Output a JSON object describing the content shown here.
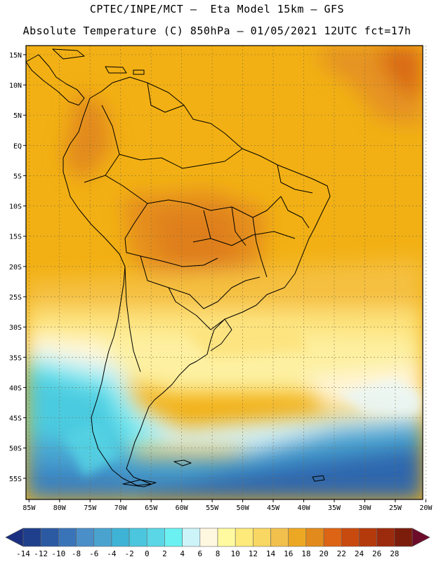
{
  "title_line1": "CPTEC/INPE/MCT –  Eta Model 15km – GFS",
  "title_line2": "Absolute Temperature (C) 850hPa – 01/05/2021 12UTC fct=17h",
  "lat_labels": [
    "15N",
    "10N",
    "5N",
    "EQ",
    "5S",
    "10S",
    "15S",
    "20S",
    "25S",
    "30S",
    "35S",
    "40S",
    "45S",
    "50S",
    "55S"
  ],
  "lat_values": [
    15,
    10,
    5,
    0,
    -5,
    -10,
    -15,
    -20,
    -25,
    -30,
    -35,
    -40,
    -45,
    -50,
    -55
  ],
  "lon_labels": [
    "85W",
    "80W",
    "75W",
    "70W",
    "65W",
    "60W",
    "55W",
    "50W",
    "45W",
    "40W",
    "35W",
    "30W",
    "25W",
    "20W"
  ],
  "lon_values": [
    -85,
    -80,
    -75,
    -70,
    -65,
    -60,
    -55,
    -50,
    -45,
    -40,
    -35,
    -30,
    -25,
    -20
  ],
  "extent": {
    "lon_min": -85.5,
    "lon_max": -20.5,
    "lat_min": -58.5,
    "lat_max": 16.5
  },
  "colorbar": {
    "labels": [
      "-14",
      "-12",
      "-10",
      "-8",
      "-6",
      "-4",
      "-2",
      "0",
      "2",
      "4",
      "6",
      "8",
      "10",
      "12",
      "14",
      "16",
      "18",
      "20",
      "22",
      "24",
      "26",
      "28"
    ],
    "colors": [
      "#1f3f8c",
      "#2b5aa3",
      "#3a74b8",
      "#4a8fc8",
      "#4aa3cf",
      "#3fb3d6",
      "#4cc6de",
      "#5ad6e6",
      "#6bf1f1",
      "#ccf4f9",
      "#fff8e0",
      "#fffaa0",
      "#fdea7a",
      "#f8d762",
      "#f2c04c",
      "#eda823",
      "#e28a1c",
      "#dd6414",
      "#c94a0e",
      "#b43a0b",
      "#9c2a0c",
      "#7c1d0c"
    ],
    "arrow_low": "#1b2f80",
    "arrow_high": "#6c0c2a"
  }
}
